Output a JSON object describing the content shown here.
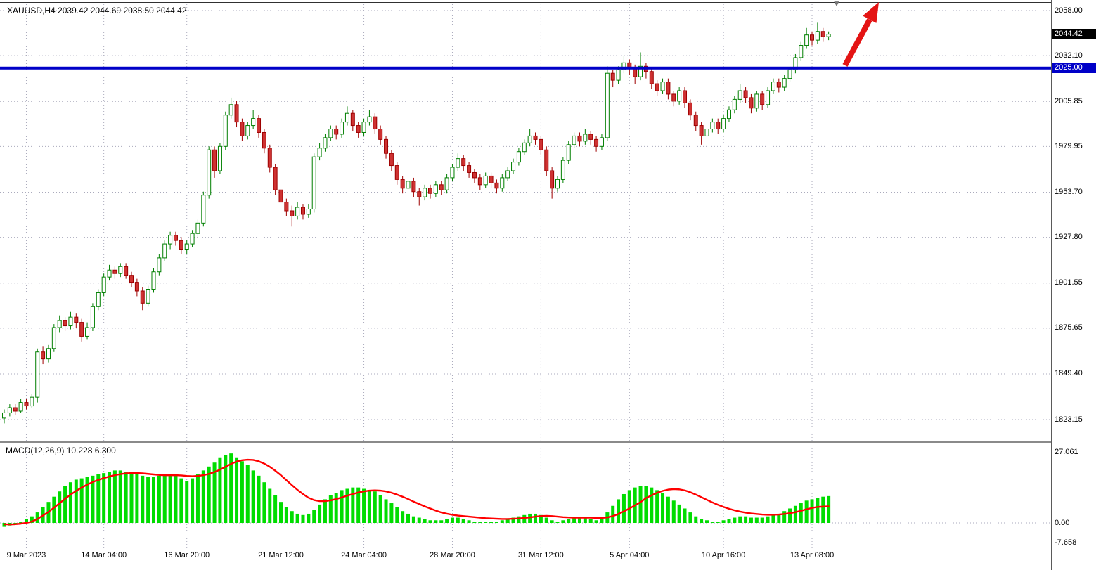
{
  "header": {
    "symbol": "XAUUSD",
    "period": "H4",
    "open": "2039.42",
    "high": "2044.69",
    "low": "2038.50",
    "close": "2044.42",
    "ohlc_line": "XAUUSD,H4  2039.42 2044.69 2038.50 2044.42"
  },
  "indicator_header": {
    "name": "MACD",
    "params": "12,26,9",
    "main_value": "10.228",
    "signal_value": "6.300",
    "text": "MACD(12,26,9) 10.228 6.300"
  },
  "colors": {
    "bull": "#007F00",
    "bull_fill": "#FFFFFF",
    "bear": "#9E0000",
    "bear_fill": "#CE3232",
    "macd_histogram": "#00DC00",
    "macd_signal": "#FF0000",
    "level_line": "#0000C8",
    "last_badge_bg": "#000000",
    "level_badge_bg": "#0000C8",
    "grid": "#AAAABC",
    "arrow": "#E41414"
  },
  "price_axis": {
    "gridline_labels": [
      {
        "text": "2058.00",
        "price": 2058.0
      },
      {
        "text": "2032.10",
        "price": 2032.1
      },
      {
        "text": "2005.85",
        "price": 2005.85
      },
      {
        "text": "1979.95",
        "price": 1979.95
      },
      {
        "text": "1953.70",
        "price": 1953.7
      },
      {
        "text": "1927.80",
        "price": 1927.8
      },
      {
        "text": "1901.55",
        "price": 1901.55
      },
      {
        "text": "1875.65",
        "price": 1875.65
      },
      {
        "text": "1849.40",
        "price": 1849.4
      },
      {
        "text": "1823.15",
        "price": 1823.15
      }
    ],
    "last_price_badge": {
      "text": "2044.42",
      "price": 2044.42
    },
    "level_badge": {
      "text": "2025.00",
      "price": 2025.0
    }
  },
  "macd_axis": {
    "labels": [
      {
        "text": "27.061",
        "value": 27.061
      },
      {
        "text": "0.00",
        "value": 0
      },
      {
        "text": "-7.658",
        "value": -7.658
      }
    ]
  },
  "time_axis": {
    "labels": [
      {
        "text": "9 Mar 2023",
        "bar": 4
      },
      {
        "text": "14 Mar 04:00",
        "bar": 18
      },
      {
        "text": "16 Mar 20:00",
        "bar": 33
      },
      {
        "text": "21 Mar 12:00",
        "bar": 50
      },
      {
        "text": "24 Mar 04:00",
        "bar": 65
      },
      {
        "text": "28 Mar 20:00",
        "bar": 81
      },
      {
        "text": "31 Mar 12:00",
        "bar": 97
      },
      {
        "text": "5 Apr 04:00",
        "bar": 113
      },
      {
        "text": "10 Apr 16:00",
        "bar": 130
      },
      {
        "text": "13 Apr 08:00",
        "bar": 146
      }
    ]
  },
  "annotations": {
    "arrow": {
      "type": "up-trend-arrow"
    },
    "marker": {
      "glyph": "▼"
    }
  },
  "chart_data": {
    "type": "candlestick",
    "symbol": "XAUUSD",
    "timeframe": "H4",
    "last_price": 2044.42,
    "level_line": 2025.0,
    "price_range": [
      1823.15,
      2058.0
    ],
    "candles": [
      [
        1824,
        1829,
        1821,
        1827
      ],
      [
        1827,
        1832,
        1825,
        1830
      ],
      [
        1830,
        1832,
        1826,
        1828
      ],
      [
        1828,
        1835,
        1827,
        1833
      ],
      [
        1833,
        1835,
        1829,
        1831
      ],
      [
        1831,
        1838,
        1830,
        1836
      ],
      [
        1836,
        1864,
        1833,
        1862
      ],
      [
        1862,
        1865,
        1855,
        1858
      ],
      [
        1858,
        1866,
        1856,
        1864
      ],
      [
        1864,
        1878,
        1862,
        1876
      ],
      [
        1876,
        1883,
        1873,
        1880
      ],
      [
        1880,
        1882,
        1874,
        1877
      ],
      [
        1877,
        1885,
        1875,
        1882
      ],
      [
        1882,
        1884,
        1876,
        1879
      ],
      [
        1879,
        1881,
        1868,
        1871
      ],
      [
        1871,
        1879,
        1869,
        1876
      ],
      [
        1876,
        1890,
        1874,
        1888
      ],
      [
        1888,
        1898,
        1886,
        1896
      ],
      [
        1896,
        1907,
        1894,
        1905
      ],
      [
        1905,
        1912,
        1903,
        1909
      ],
      [
        1909,
        1911,
        1904,
        1907
      ],
      [
        1907,
        1913,
        1905,
        1911
      ],
      [
        1911,
        1913,
        1904,
        1906
      ],
      [
        1906,
        1908,
        1899,
        1902
      ],
      [
        1902,
        1904,
        1894,
        1897
      ],
      [
        1897,
        1899,
        1886,
        1890
      ],
      [
        1890,
        1900,
        1888,
        1898
      ],
      [
        1898,
        1910,
        1896,
        1908
      ],
      [
        1908,
        1918,
        1906,
        1916
      ],
      [
        1916,
        1926,
        1914,
        1924
      ],
      [
        1924,
        1931,
        1921,
        1929
      ],
      [
        1929,
        1931,
        1923,
        1926
      ],
      [
        1926,
        1928,
        1918,
        1921
      ],
      [
        1921,
        1926,
        1918,
        1924
      ],
      [
        1924,
        1932,
        1922,
        1930
      ],
      [
        1930,
        1938,
        1928,
        1936
      ],
      [
        1936,
        1954,
        1934,
        1952
      ],
      [
        1952,
        1980,
        1950,
        1978
      ],
      [
        1978,
        1980,
        1962,
        1966
      ],
      [
        1966,
        1982,
        1964,
        1980
      ],
      [
        1980,
        2000,
        1978,
        1998
      ],
      [
        1998,
        2008,
        1996,
        2004
      ],
      [
        2004,
        2006,
        1991,
        1994
      ],
      [
        1994,
        1996,
        1983,
        1986
      ],
      [
        1986,
        1994,
        1984,
        1992
      ],
      [
        1992,
        2001,
        1990,
        1996
      ],
      [
        1996,
        1998,
        1985,
        1988
      ],
      [
        1988,
        1990,
        1976,
        1979
      ],
      [
        1979,
        1981,
        1965,
        1968
      ],
      [
        1968,
        1970,
        1952,
        1955
      ],
      [
        1955,
        1957,
        1945,
        1948
      ],
      [
        1948,
        1950,
        1940,
        1943
      ],
      [
        1943,
        1946,
        1934,
        1940
      ],
      [
        1940,
        1948,
        1938,
        1945
      ],
      [
        1945,
        1947,
        1938,
        1941
      ],
      [
        1941,
        1947,
        1939,
        1944
      ],
      [
        1944,
        1976,
        1942,
        1974
      ],
      [
        1974,
        1982,
        1972,
        1979
      ],
      [
        1979,
        1987,
        1977,
        1985
      ],
      [
        1985,
        1992,
        1983,
        1990
      ],
      [
        1990,
        1992,
        1984,
        1987
      ],
      [
        1987,
        1996,
        1985,
        1994
      ],
      [
        1994,
        2003,
        1992,
        1999
      ],
      [
        1999,
        2001,
        1989,
        1992
      ],
      [
        1992,
        1994,
        1985,
        1988
      ],
      [
        1988,
        1996,
        1986,
        1994
      ],
      [
        1994,
        2001,
        1992,
        1997
      ],
      [
        1997,
        1999,
        1987,
        1990
      ],
      [
        1990,
        1992,
        1981,
        1984
      ],
      [
        1984,
        1986,
        1973,
        1976
      ],
      [
        1976,
        1978,
        1966,
        1969
      ],
      [
        1969,
        1971,
        1958,
        1961
      ],
      [
        1961,
        1963,
        1953,
        1956
      ],
      [
        1956,
        1962,
        1954,
        1960
      ],
      [
        1960,
        1962,
        1951,
        1954
      ],
      [
        1954,
        1956,
        1946,
        1951
      ],
      [
        1951,
        1958,
        1949,
        1956
      ],
      [
        1956,
        1958,
        1950,
        1953
      ],
      [
        1953,
        1960,
        1951,
        1958
      ],
      [
        1958,
        1960,
        1952,
        1955
      ],
      [
        1955,
        1964,
        1953,
        1962
      ],
      [
        1962,
        1970,
        1960,
        1968
      ],
      [
        1968,
        1976,
        1966,
        1973
      ],
      [
        1973,
        1975,
        1966,
        1969
      ],
      [
        1969,
        1971,
        1962,
        1965
      ],
      [
        1965,
        1967,
        1959,
        1962
      ],
      [
        1962,
        1964,
        1955,
        1958
      ],
      [
        1958,
        1965,
        1956,
        1963
      ],
      [
        1963,
        1965,
        1956,
        1959
      ],
      [
        1959,
        1961,
        1953,
        1956
      ],
      [
        1956,
        1964,
        1954,
        1962
      ],
      [
        1962,
        1968,
        1960,
        1966
      ],
      [
        1966,
        1973,
        1964,
        1971
      ],
      [
        1971,
        1979,
        1969,
        1977
      ],
      [
        1977,
        1984,
        1975,
        1982
      ],
      [
        1982,
        1990,
        1980,
        1986
      ],
      [
        1986,
        1988,
        1981,
        1984
      ],
      [
        1984,
        1986,
        1975,
        1978
      ],
      [
        1978,
        1980,
        1963,
        1966
      ],
      [
        1966,
        1968,
        1950,
        1956
      ],
      [
        1956,
        1963,
        1954,
        1961
      ],
      [
        1961,
        1974,
        1959,
        1972
      ],
      [
        1972,
        1983,
        1970,
        1981
      ],
      [
        1981,
        1988,
        1979,
        1986
      ],
      [
        1986,
        1988,
        1980,
        1983
      ],
      [
        1983,
        1990,
        1981,
        1987
      ],
      [
        1987,
        1989,
        1981,
        1984
      ],
      [
        1984,
        1986,
        1977,
        1980
      ],
      [
        1980,
        1987,
        1978,
        1985
      ],
      [
        1985,
        2026,
        1983,
        2022
      ],
      [
        2022,
        2024,
        2014,
        2018
      ],
      [
        2018,
        2026,
        2016,
        2024
      ],
      [
        2024,
        2032,
        2022,
        2028
      ],
      [
        2028,
        2030,
        2021,
        2025
      ],
      [
        2025,
        2027,
        2016,
        2020
      ],
      [
        2020,
        2034,
        2018,
        2026
      ],
      [
        2026,
        2028,
        2019,
        2023
      ],
      [
        2023,
        2025,
        2013,
        2016
      ],
      [
        2016,
        2018,
        2009,
        2012
      ],
      [
        2012,
        2019,
        2010,
        2017
      ],
      [
        2017,
        2019,
        2007,
        2010
      ],
      [
        2010,
        2012,
        2003,
        2006
      ],
      [
        2006,
        2014,
        2004,
        2012
      ],
      [
        2012,
        2014,
        2002,
        2005
      ],
      [
        2005,
        2007,
        1995,
        1998
      ],
      [
        1998,
        2000,
        1989,
        1992
      ],
      [
        1992,
        1994,
        1981,
        1986
      ],
      [
        1986,
        1992,
        1984,
        1990
      ],
      [
        1990,
        1996,
        1988,
        1994
      ],
      [
        1994,
        1996,
        1987,
        1990
      ],
      [
        1990,
        1998,
        1988,
        1996
      ],
      [
        1996,
        2003,
        1994,
        2001
      ],
      [
        2001,
        2009,
        1999,
        2007
      ],
      [
        2007,
        2016,
        2005,
        2012
      ],
      [
        2012,
        2014,
        2005,
        2008
      ],
      [
        2008,
        2010,
        1999,
        2002
      ],
      [
        2002,
        2012,
        2000,
        2010
      ],
      [
        2010,
        2012,
        2001,
        2004
      ],
      [
        2004,
        2014,
        2002,
        2012
      ],
      [
        2012,
        2019,
        2010,
        2017
      ],
      [
        2017,
        2019,
        2011,
        2014
      ],
      [
        2014,
        2021,
        2012,
        2019
      ],
      [
        2019,
        2026,
        2017,
        2024
      ],
      [
        2024,
        2033,
        2022,
        2031
      ],
      [
        2031,
        2040,
        2029,
        2038
      ],
      [
        2038,
        2048,
        2036,
        2044
      ],
      [
        2044,
        2046,
        2038,
        2041
      ],
      [
        2041,
        2051,
        2039,
        2046
      ],
      [
        2046,
        2048,
        2040,
        2043
      ],
      [
        2043,
        2046,
        2041,
        2044.42
      ]
    ],
    "macd": {
      "params": [
        12,
        26,
        9
      ],
      "range": [
        -7.658,
        27.061
      ],
      "histogram": [
        -1.5,
        -1,
        -0.5,
        0.5,
        1.5,
        2.5,
        4,
        6,
        8,
        10,
        12,
        14,
        15.5,
        16.5,
        17,
        17.5,
        18,
        18.5,
        19,
        19.5,
        20,
        20,
        19.5,
        19,
        18.5,
        18,
        17.5,
        17.5,
        18,
        18.5,
        18.5,
        18,
        17,
        16,
        17,
        18.5,
        20,
        21.5,
        23,
        25,
        25.8,
        26.5,
        25,
        23.5,
        22,
        20,
        18,
        15.5,
        13,
        10.5,
        8,
        6,
        4.5,
        3.5,
        3,
        3.5,
        5,
        7,
        9,
        10.5,
        11.5,
        12.5,
        13,
        13.5,
        13.5,
        13,
        12.5,
        12,
        10.5,
        9,
        7.5,
        6,
        4.5,
        3.5,
        2.5,
        2,
        1.5,
        1,
        1,
        1,
        1.5,
        2,
        2,
        1.5,
        1,
        0.5,
        0.5,
        0.5,
        0.5,
        0.5,
        1,
        1.5,
        2,
        2.5,
        3,
        3.5,
        3.5,
        3,
        2,
        1,
        0.5,
        1,
        1.5,
        2,
        2,
        2,
        1.5,
        1,
        1.5,
        4,
        6.5,
        9,
        11,
        12.5,
        13.5,
        14,
        14,
        13.5,
        12.5,
        11.5,
        10,
        8.5,
        7,
        5.5,
        4,
        2.5,
        1.5,
        1,
        0.5,
        0.5,
        1,
        1.5,
        2,
        2.5,
        2.5,
        2,
        2,
        2,
        2.5,
        3,
        3.5,
        4.5,
        5.5,
        6.5,
        7.5,
        8.5,
        9,
        9.5,
        10,
        10.228
      ],
      "signal": [
        -0.5,
        -0.6,
        -0.5,
        -0.3,
        0,
        0.5,
        1.5,
        2.8,
        4.2,
        5.8,
        7.5,
        9.2,
        10.8,
        12.2,
        13.5,
        14.6,
        15.6,
        16.4,
        17.1,
        17.7,
        18.2,
        18.6,
        18.9,
        19,
        19,
        18.9,
        18.7,
        18.5,
        18.3,
        18.2,
        18.2,
        18.2,
        18.1,
        17.9,
        17.8,
        17.9,
        18.2,
        18.7,
        19.4,
        20.3,
        21.4,
        22.5,
        23.4,
        23.9,
        24.1,
        24,
        23.5,
        22.6,
        21.4,
        19.9,
        18.2,
        16.3,
        14.4,
        12.6,
        11,
        9.6,
        8.7,
        8.3,
        8.3,
        8.6,
        9.1,
        9.7,
        10.4,
        11,
        11.6,
        12,
        12.3,
        12.4,
        12.3,
        12,
        11.5,
        10.8,
        10,
        9.1,
        8.1,
        7.2,
        6.3,
        5.5,
        4.7,
        4,
        3.5,
        3.1,
        2.8,
        2.6,
        2.4,
        2.2,
        2,
        1.8,
        1.7,
        1.6,
        1.5,
        1.5,
        1.6,
        1.7,
        1.9,
        2.1,
        2.4,
        2.6,
        2.7,
        2.6,
        2.4,
        2.2,
        2.1,
        2,
        2,
        2,
        2,
        1.9,
        1.9,
        2.1,
        2.6,
        3.4,
        4.4,
        5.5,
        6.7,
        7.9,
        9.5,
        10.5,
        11.5,
        12.2,
        12.7,
        12.9,
        12.8,
        12.4,
        11.7,
        10.8,
        9.8,
        8.8,
        7.8,
        6.9,
        6.1,
        5.4,
        4.8,
        4.3,
        3.9,
        3.6,
        3.4,
        3.2,
        3.1,
        3.1,
        3.2,
        3.4,
        3.7,
        4.1,
        4.6,
        5.2,
        5.7,
        6.1,
        6.2,
        6.3
      ]
    }
  }
}
